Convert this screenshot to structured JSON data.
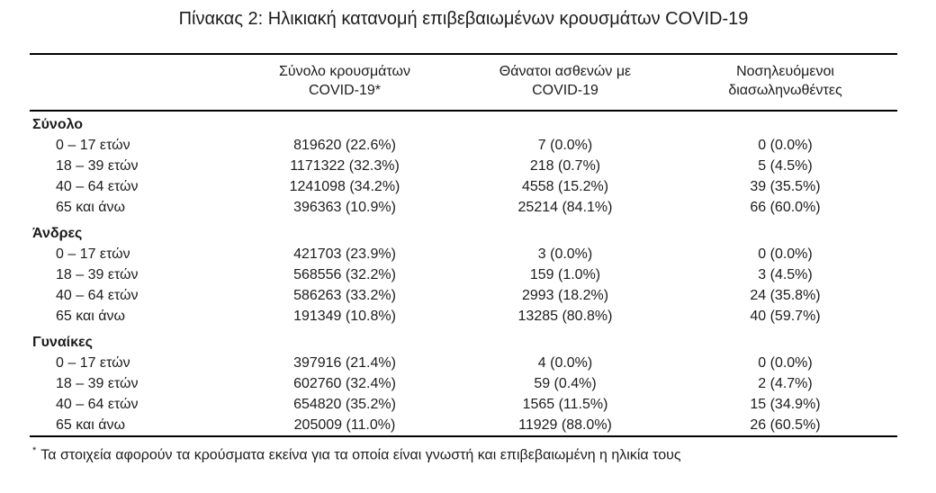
{
  "page": {
    "title": "Πίνακας 2: Ηλικιακή κατανομή επιβεβαιωμένων κρουσμάτων COVID-19"
  },
  "table": {
    "column_headers": {
      "cases": "Σύνολο κρουσμάτων\nCOVID-19*",
      "deaths": "Θάνατοι ασθενών με\nCOVID-19",
      "intubated": "Νοσηλευόμενοι\nδιασωληνωθέντες"
    },
    "groups": [
      {
        "label": "Σύνολο",
        "rows": [
          {
            "age": "0 – 17 ετών",
            "cases": "819620 (22.6%)",
            "deaths": "7 (0.0%)",
            "intubated": "0 (0.0%)"
          },
          {
            "age": "18 – 39 ετών",
            "cases": "1171322 (32.3%)",
            "deaths": "218 (0.7%)",
            "intubated": "5 (4.5%)"
          },
          {
            "age": "40 – 64 ετών",
            "cases": "1241098 (34.2%)",
            "deaths": "4558 (15.2%)",
            "intubated": "39 (35.5%)"
          },
          {
            "age": "65 και άνω",
            "cases": "396363 (10.9%)",
            "deaths": "25214 (84.1%)",
            "intubated": "66 (60.0%)"
          }
        ]
      },
      {
        "label": "Άνδρες",
        "rows": [
          {
            "age": "0 – 17 ετών",
            "cases": "421703 (23.9%)",
            "deaths": "3 (0.0%)",
            "intubated": "0 (0.0%)"
          },
          {
            "age": "18 – 39 ετών",
            "cases": "568556 (32.2%)",
            "deaths": "159 (1.0%)",
            "intubated": "3 (4.5%)"
          },
          {
            "age": "40 – 64 ετών",
            "cases": "586263 (33.2%)",
            "deaths": "2993 (18.2%)",
            "intubated": "24 (35.8%)"
          },
          {
            "age": "65 και άνω",
            "cases": "191349 (10.8%)",
            "deaths": "13285 (80.8%)",
            "intubated": "40 (59.7%)"
          }
        ]
      },
      {
        "label": "Γυναίκες",
        "rows": [
          {
            "age": "0 – 17 ετών",
            "cases": "397916 (21.4%)",
            "deaths": "4 (0.0%)",
            "intubated": "0 (0.0%)"
          },
          {
            "age": "18 – 39 ετών",
            "cases": "602760 (32.4%)",
            "deaths": "59 (0.4%)",
            "intubated": "2 (4.7%)"
          },
          {
            "age": "40 – 64 ετών",
            "cases": "654820 (35.2%)",
            "deaths": "1565 (11.5%)",
            "intubated": "15 (34.9%)"
          },
          {
            "age": "65 και άνω",
            "cases": "205009 (11.0%)",
            "deaths": "11929 (88.0%)",
            "intubated": "26 (60.5%)"
          }
        ]
      }
    ]
  },
  "footnote": {
    "marker": "*",
    "text": "Τα στοιχεία αφορούν τα κρούσματα εκείνα για τα οποία είναι γνωστή και επιβεβαιωμένη η ηλικία τους"
  },
  "colors": {
    "text": "#1c1c1c",
    "border": "#000000",
    "background": "#ffffff"
  }
}
